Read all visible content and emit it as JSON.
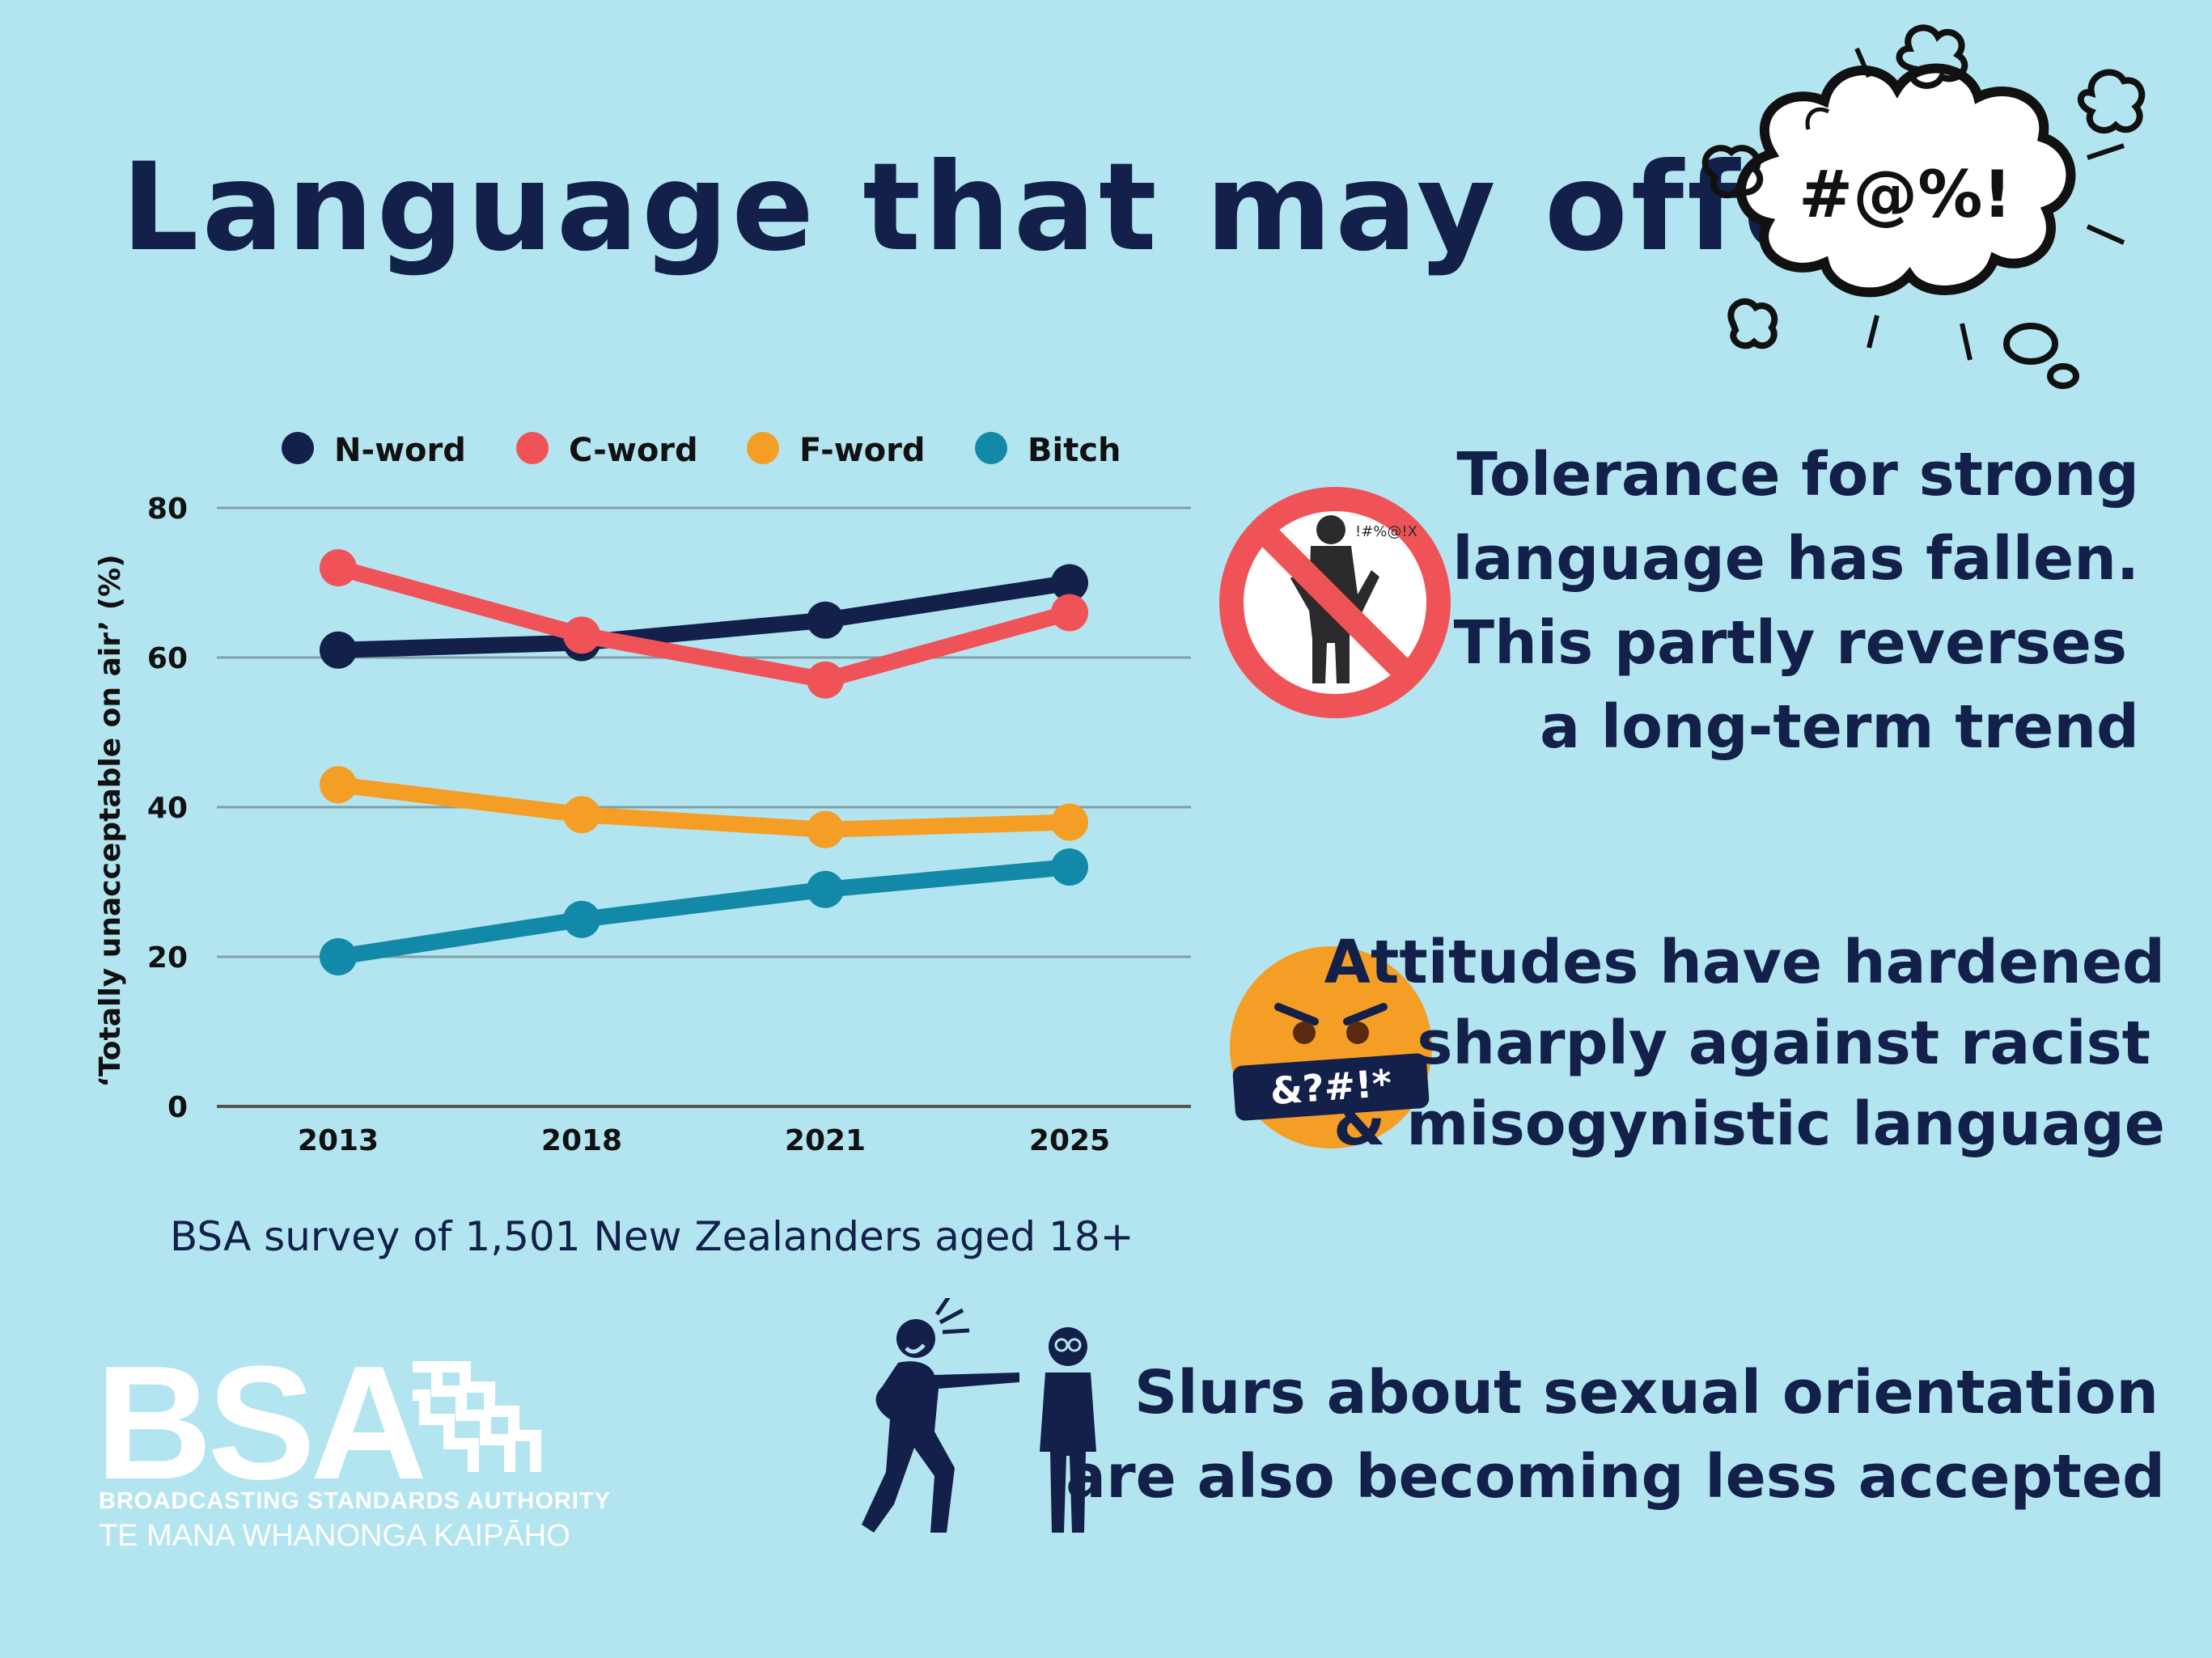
{
  "title": "Language that may offend",
  "bubble_text": "#@%!",
  "colors": {
    "background": "#b3e5f0",
    "navy": "#13204a",
    "n_word": "#13204a",
    "c_word": "#ef5358",
    "f_word": "#f59e26",
    "bitch": "#1289a8",
    "grid": "#7f9ea6",
    "emoji": "#f59e26",
    "no_sign": "#ef5358"
  },
  "icons": {
    "bubble": "swearing-cloud-icon",
    "no_sign": "no-swearing-icon",
    "emoji": "censored-angry-face-icon",
    "people": "pointing-mocking-people-icon"
  },
  "chart_data": {
    "type": "line",
    "ylabel": "‘Totally unacceptable on air’ (%)",
    "xlabel": "",
    "x": [
      "2013",
      "2018",
      "2021",
      "2025"
    ],
    "yticks": [
      "80",
      "60",
      "40",
      "20",
      "0"
    ],
    "ylim": [
      0,
      80
    ],
    "grid": true,
    "legend_placement": "top",
    "series": [
      {
        "name": "N-word",
        "key": "n_word",
        "values": [
          61,
          62,
          65,
          70
        ]
      },
      {
        "name": "C-word",
        "key": "c_word",
        "values": [
          72,
          63,
          57,
          66
        ]
      },
      {
        "name": "F-word",
        "key": "f_word",
        "values": [
          43,
          39,
          37,
          38
        ]
      },
      {
        "name": "Bitch",
        "key": "bitch",
        "values": [
          20,
          25,
          29,
          32
        ]
      }
    ]
  },
  "source_note": "BSA survey of 1,501 New Zealanders aged 18+",
  "messages": {
    "tolerance": [
      "Tolerance for strong",
      "language has fallen.",
      "This partly reverses",
      "a long-term trend"
    ],
    "attitudes": [
      "Attitudes have hardened",
      "sharply against racist",
      "& misogynistic language"
    ],
    "slurs": [
      "Slurs about sexual orientation",
      "are also becoming less accepted"
    ]
  },
  "emoji_text": "&?#!*",
  "no_sign_text": "!#%@!X",
  "logo": {
    "letters": "BSA",
    "line1": "BROADCASTING STANDARDS AUTHORITY",
    "line2": "TE MANA WHANONGA KAIPĀHO"
  }
}
